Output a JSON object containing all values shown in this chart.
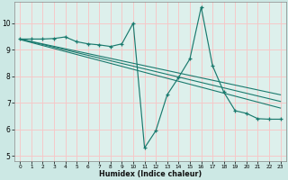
{
  "xlabel": "Humidex (Indice chaleur)",
  "bg_color": "#cce8e4",
  "plot_bg_color": "#ddf0ec",
  "grid_color": "#f5c8c8",
  "line_color": "#1a7a6e",
  "xlim": [
    -0.5,
    23.5
  ],
  "ylim": [
    4.8,
    10.8
  ],
  "xticks": [
    0,
    1,
    2,
    3,
    4,
    5,
    6,
    7,
    8,
    9,
    10,
    11,
    12,
    13,
    14,
    15,
    16,
    17,
    18,
    19,
    20,
    21,
    22,
    23
  ],
  "yticks": [
    5,
    6,
    7,
    8,
    9,
    10
  ],
  "series1_y": [
    9.4,
    9.4,
    9.4,
    9.42,
    9.48,
    9.3,
    9.22,
    9.18,
    9.12,
    9.22,
    10.0,
    5.3,
    5.95,
    7.3,
    7.95,
    8.65,
    10.6,
    8.4,
    7.4,
    6.7,
    6.6,
    6.4,
    6.38,
    6.38
  ],
  "trend2_start_y": 9.4,
  "trend2_end_y": 7.3,
  "trend3_start_y": 9.38,
  "trend3_end_y": 6.8
}
